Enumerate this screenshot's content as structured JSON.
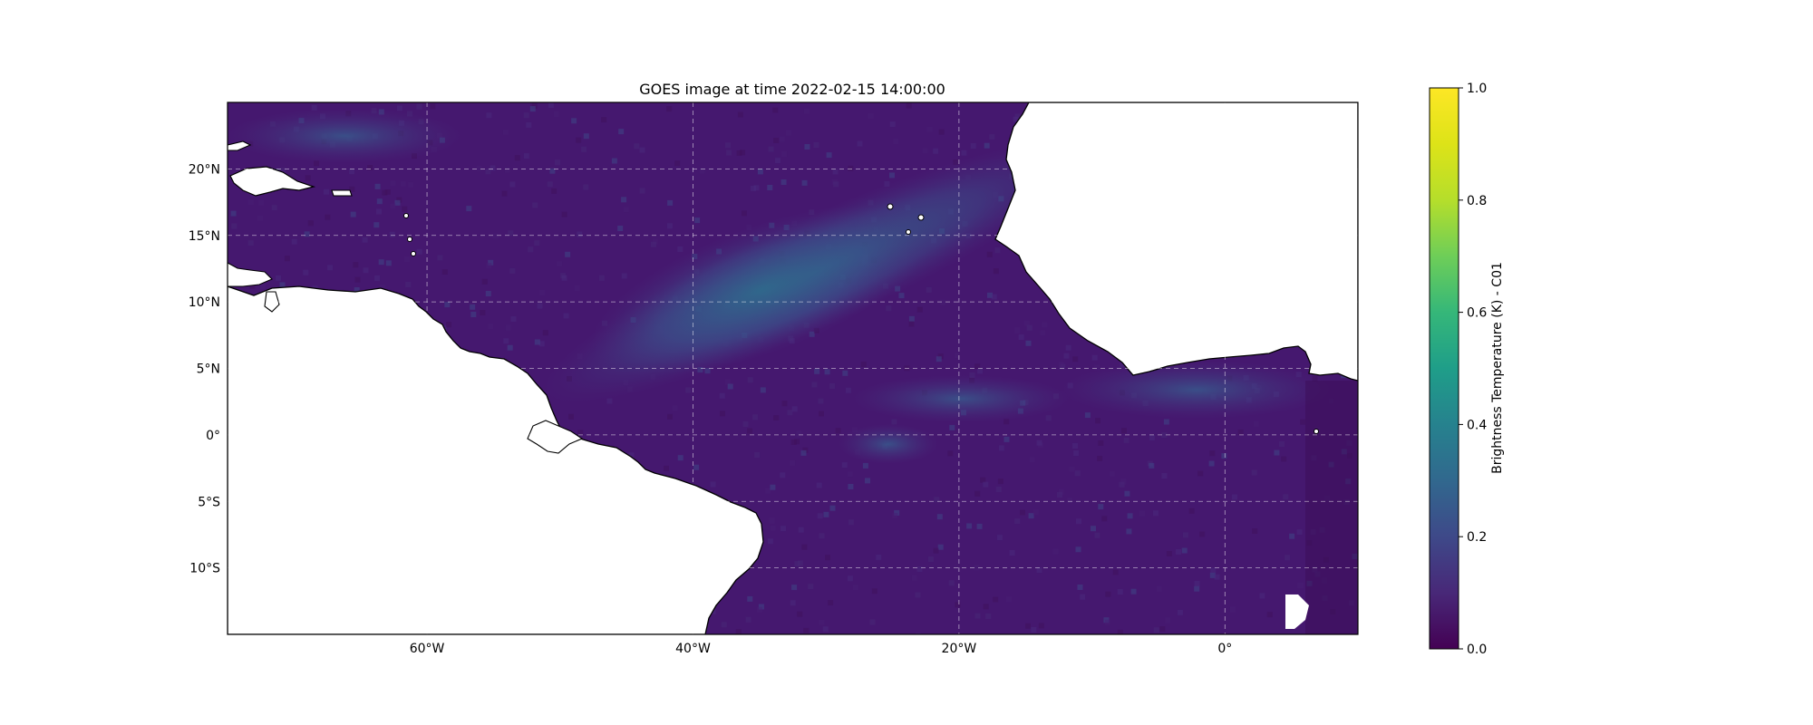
{
  "title": "GOES image at time 2022-02-15 14:00:00",
  "map": {
    "lon_range": [
      -75,
      10
    ],
    "lat_range": [
      -15,
      25
    ],
    "gridlines": true,
    "x_ticks": [
      {
        "lon": -60,
        "label": "60°W"
      },
      {
        "lon": -40,
        "label": "40°W"
      },
      {
        "lon": -20,
        "label": "20°W"
      },
      {
        "lon": 0,
        "label": "0°"
      }
    ],
    "y_ticks": [
      {
        "lat": 20,
        "label": "20°N"
      },
      {
        "lat": 15,
        "label": "15°N"
      },
      {
        "lat": 10,
        "label": "10°N"
      },
      {
        "lat": 5,
        "label": "5°N"
      },
      {
        "lat": 0,
        "label": "0°"
      },
      {
        "lat": -5,
        "label": "5°S"
      },
      {
        "lat": -10,
        "label": "10°S"
      }
    ],
    "colormap": "viridis",
    "land_color": "#ffffff",
    "coastline_color": "#000000"
  },
  "colorbar": {
    "label": "Brightness Temperature (K) - C01",
    "range": [
      0,
      1
    ],
    "ticks": [
      "0.0",
      "0.2",
      "0.4",
      "0.6",
      "0.8",
      "1.0"
    ]
  }
}
